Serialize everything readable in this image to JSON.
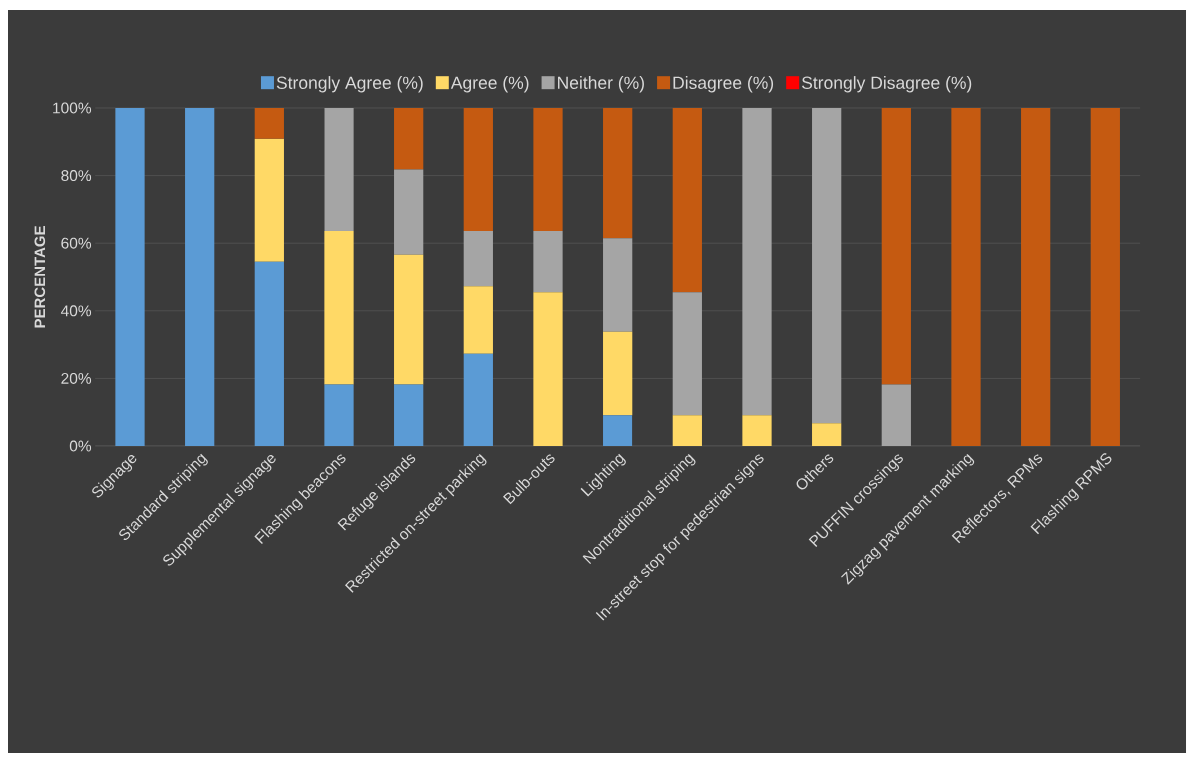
{
  "chart_data": {
    "type": "bar",
    "stacked": true,
    "ylabel": "PERCENTAGE",
    "categories": [
      "Signage",
      "Standard striping",
      "Supplemental signage",
      "Flashing beacons",
      "Refuge islands",
      "Restricted on-street parking",
      "Bulb-outs",
      "Lighting",
      "Nontraditional striping",
      "In-street stop for pedestrian signs",
      "Others",
      "PUFFIN crossings",
      "Zigzag pavement marking",
      "Reflectors, RPMs",
      "Flashing RPMS"
    ],
    "series": [
      {
        "name": "Strongly Agree (%)",
        "color": "#5b9bd5",
        "values": [
          100,
          100,
          54.5,
          18.2,
          18.2,
          27.3,
          0,
          9.1,
          0,
          0,
          0,
          0,
          0,
          0,
          0
        ]
      },
      {
        "name": "Agree (%)",
        "color": "#ffd966",
        "values": [
          0,
          0,
          36.4,
          45.4,
          38.4,
          20,
          45.5,
          24.7,
          9.1,
          9.1,
          6.7,
          0,
          0,
          0,
          0
        ]
      },
      {
        "name": "Neither (%)",
        "color": "#a5a5a5",
        "values": [
          0,
          0,
          0,
          36.4,
          25.2,
          16.3,
          18.1,
          27.7,
          36.4,
          90.9,
          93.3,
          18.2,
          0,
          0,
          0
        ]
      },
      {
        "name": "Disagree (%)",
        "color": "#c55a11",
        "values": [
          0,
          0,
          9.1,
          0,
          18.2,
          36.4,
          36.4,
          38.5,
          54.5,
          0,
          0,
          81.8,
          100,
          100,
          100
        ]
      },
      {
        "name": "Strongly Disagree (%)",
        "color": "#ff0000",
        "values": [
          0,
          0,
          0,
          0,
          0,
          0,
          0,
          0,
          0,
          0,
          0,
          0,
          0,
          0,
          0
        ]
      }
    ],
    "ylim": [
      0,
      100
    ],
    "yticks": [
      {
        "value": 0,
        "label": "0%"
      },
      {
        "value": 20,
        "label": "20%"
      },
      {
        "value": 40,
        "label": "40%"
      },
      {
        "value": 60,
        "label": "60%"
      },
      {
        "value": 80,
        "label": "80%"
      },
      {
        "value": 100,
        "label": "100%"
      }
    ],
    "grid": "y",
    "legend": "top"
  }
}
